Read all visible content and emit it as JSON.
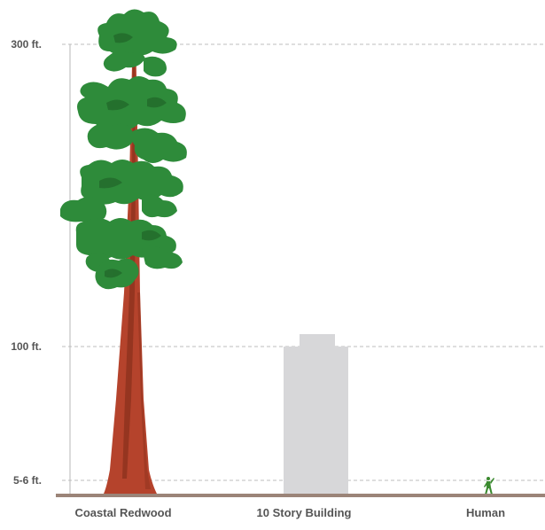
{
  "scale": {
    "levels": [
      {
        "label": "300 ft.",
        "feet": 300
      },
      {
        "label": "100 ft.",
        "feet": 100
      },
      {
        "label": "5-6 ft.",
        "feet": 5.5
      }
    ]
  },
  "subjects": [
    {
      "label": "Coastal Redwood",
      "feet": 300,
      "icon": "redwood-tree-icon"
    },
    {
      "label": "10 Story Building",
      "feet": 100,
      "icon": "building-icon"
    },
    {
      "label": "Human",
      "feet": 5.5,
      "icon": "human-figure-icon"
    }
  ],
  "colors": {
    "grid": "#bdbdbd",
    "ground": "#9b8478",
    "trunk": "#b5432c",
    "trunk_shade": "#7a2a18",
    "foliage": "#2e8b3a",
    "foliage_dark": "#1f5f26",
    "building": "#d7d7d9",
    "human": "#3a8a2e",
    "label": "#555555"
  }
}
